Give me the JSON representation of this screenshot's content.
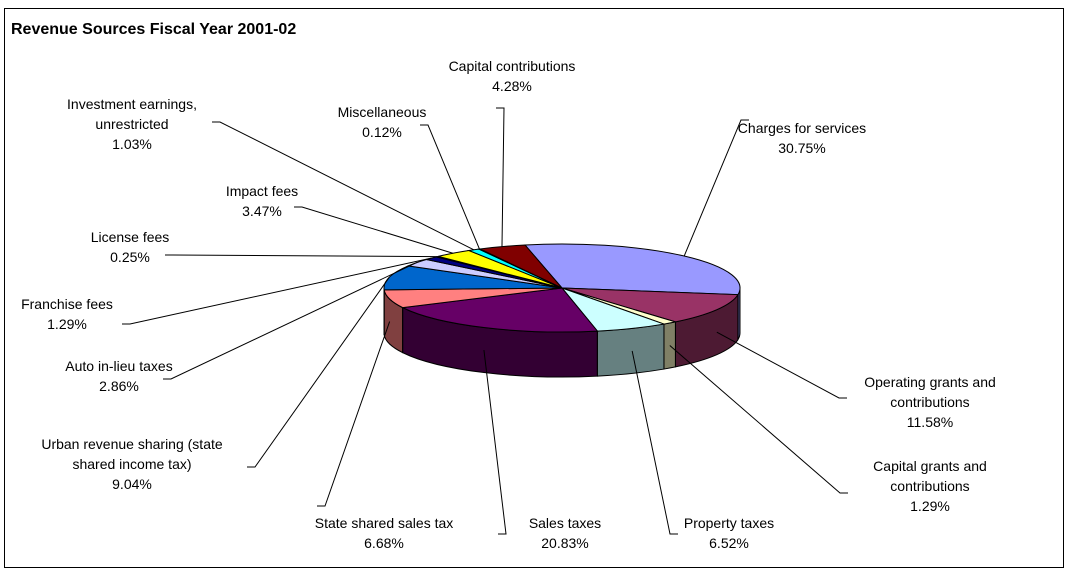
{
  "chart_data": {
    "type": "pie",
    "title": "Revenue Sources Fiscal Year 2001-02",
    "slices": [
      {
        "name": "Charges for services",
        "display": "30.75%",
        "value": 30.75,
        "color": "#9999ff"
      },
      {
        "name": "Operating grants and contributions",
        "display": "11.58%",
        "value": 11.58,
        "color": "#993366"
      },
      {
        "name": "Capital grants and contributions",
        "display": "1.29%",
        "value": 1.29,
        "color": "#ffffcc"
      },
      {
        "name": "Property taxes",
        "display": "6.52%",
        "value": 6.52,
        "color": "#ccffff"
      },
      {
        "name": "Sales taxes",
        "display": "20.83%",
        "value": 20.83,
        "color": "#660066"
      },
      {
        "name": "State shared sales tax",
        "display": "6.68%",
        "value": 6.68,
        "color": "#ff8080"
      },
      {
        "name": "Urban revenue sharing (state shared income tax)",
        "display": "9.04%",
        "value": 9.04,
        "color": "#0066cc"
      },
      {
        "name": "Auto in-lieu taxes",
        "display": "2.86%",
        "value": 2.86,
        "color": "#ccccff"
      },
      {
        "name": "Franchise fees",
        "display": "1.29%",
        "value": 1.29,
        "color": "#000080"
      },
      {
        "name": "License fees",
        "display": "0.25%",
        "value": 0.25,
        "color": "#ff00ff"
      },
      {
        "name": "Impact fees",
        "display": "3.47%",
        "value": 3.47,
        "color": "#ffff00"
      },
      {
        "name": "Investment earnings, unrestricted",
        "display": "1.03%",
        "value": 1.03,
        "color": "#00ffff"
      },
      {
        "name": "Miscellaneous",
        "display": "0.12%",
        "value": 0.12,
        "color": "#800080"
      },
      {
        "name": "Capital contributions",
        "display": "4.28%",
        "value": 4.28,
        "color": "#800000"
      }
    ],
    "label_lines": [
      [
        "Charges for services"
      ],
      [
        "Operating grants and",
        "contributions"
      ],
      [
        "Capital grants and",
        "contributions"
      ],
      [
        "Property taxes"
      ],
      [
        "Sales taxes"
      ],
      [
        "State shared sales tax"
      ],
      [
        "Urban revenue sharing (state",
        "shared income tax)"
      ],
      [
        "Auto in-lieu taxes"
      ],
      [
        "Franchise fees"
      ],
      [
        "License fees"
      ],
      [
        "Impact fees"
      ],
      [
        "Investment earnings,",
        "unrestricted"
      ],
      [
        "Miscellaneous"
      ],
      [
        "Capital contributions"
      ]
    ],
    "legend": "none",
    "style": "3d-pie"
  }
}
